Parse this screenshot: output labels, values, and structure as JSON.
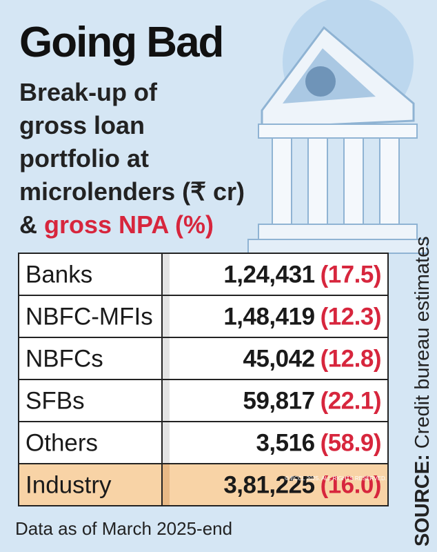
{
  "header": {
    "title": "Going Bad",
    "subtitle": {
      "lines": [
        "Break-up of",
        "gross loan",
        "portfolio at",
        "microlenders (₹ cr)"
      ],
      "last_line": {
        "prefix": "&",
        "highlight": "gross NPA (%)"
      }
    }
  },
  "table": {
    "rows": [
      [
        "Banks",
        "1,24,431",
        "(17.5)"
      ],
      [
        "NBFC-MFIs",
        "1,48,419",
        "(12.3)"
      ],
      [
        "NBFCs",
        "45,042",
        "(12.8)"
      ],
      [
        "SFBs",
        "59,817",
        "(22.1)"
      ],
      [
        "Others",
        "3,516",
        "(58.9)"
      ],
      [
        "Industry",
        "3,81,225",
        "(16.0)"
      ]
    ]
  },
  "footnote": "Data as of March 2025-end",
  "source": {
    "label": "SOURCE:",
    "text": "Credit bureau estimates"
  },
  "watermark": "© BCCL 2025. ALL RIGHTS RESERVED."
}
